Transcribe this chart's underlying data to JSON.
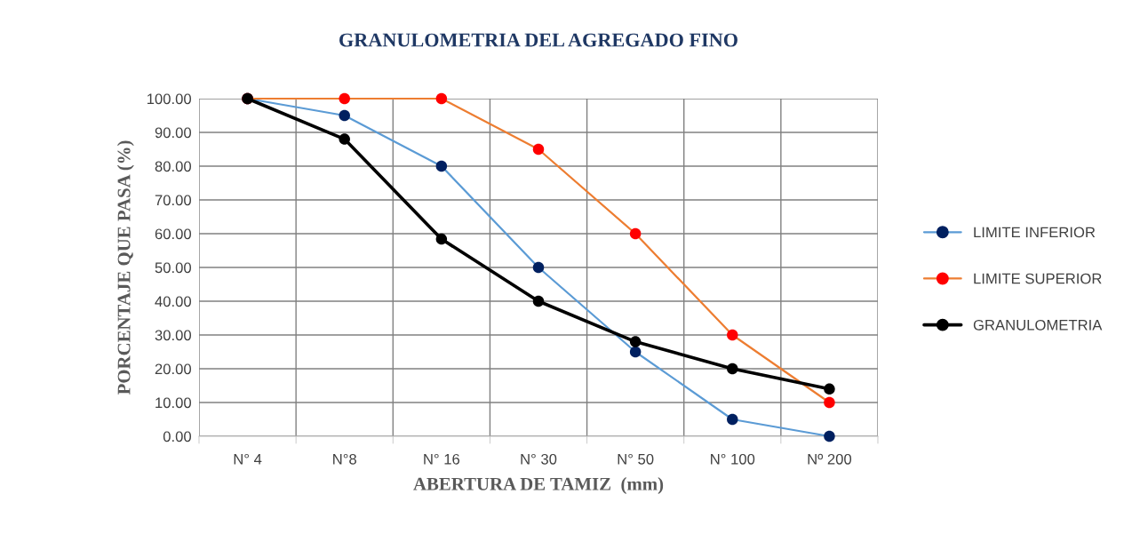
{
  "chart_data": {
    "type": "line",
    "title": "GRANULOMETRIA DEL AGREGADO FINO",
    "xlabel": "ABERTURA DE TAMIZ  (mm)",
    "ylabel": "PORCENTAJE QUE PASA (%)",
    "categories": [
      "N° 4",
      "N°8",
      "N° 16",
      "N° 30",
      "N° 50",
      "N° 100",
      "Nº 200"
    ],
    "series": [
      {
        "name": "LIMITE INFERIOR",
        "color": "#5b9bd5",
        "colors": [
          "#002060",
          "#002060",
          "#002060",
          "#002060",
          "#002060",
          "#002060",
          "#002060"
        ],
        "values": [
          100,
          95,
          80,
          50,
          25,
          5,
          0
        ]
      },
      {
        "name": "LIMITE SUPERIOR",
        "color": "#ed7d31",
        "colors": [
          "#ff0000",
          "#ff0000",
          "#ff0000",
          "#ff0000",
          "#ff0000",
          "#ff0000",
          "#ff0000"
        ],
        "values": [
          100,
          100,
          100,
          85,
          60,
          30,
          10
        ]
      },
      {
        "name": "GRANULOMETRIA",
        "color": "#000000",
        "colors": [
          "#000000",
          "#000000",
          "#000000",
          "#000000",
          "#000000",
          "#000000",
          "#000000"
        ],
        "values": [
          100,
          88,
          58.4,
          40,
          28,
          20,
          14
        ]
      }
    ],
    "ylim": [
      0,
      100
    ],
    "yticks": [
      {
        "value": 0,
        "label": "0.00"
      },
      {
        "value": 10,
        "label": "10.00"
      },
      {
        "value": 20,
        "label": "20.00"
      },
      {
        "value": 30,
        "label": "30.00"
      },
      {
        "value": 40,
        "label": "40.00"
      },
      {
        "value": 50,
        "label": "50.00"
      },
      {
        "value": 60,
        "label": "60.00"
      },
      {
        "value": 70,
        "label": "70.00"
      },
      {
        "value": 80,
        "label": "80.00"
      },
      {
        "value": 90,
        "label": "90.00"
      },
      {
        "value": 100,
        "label": "100.00"
      }
    ],
    "grid": true,
    "legend": "right",
    "marker": "circle",
    "line_style": "solid"
  }
}
